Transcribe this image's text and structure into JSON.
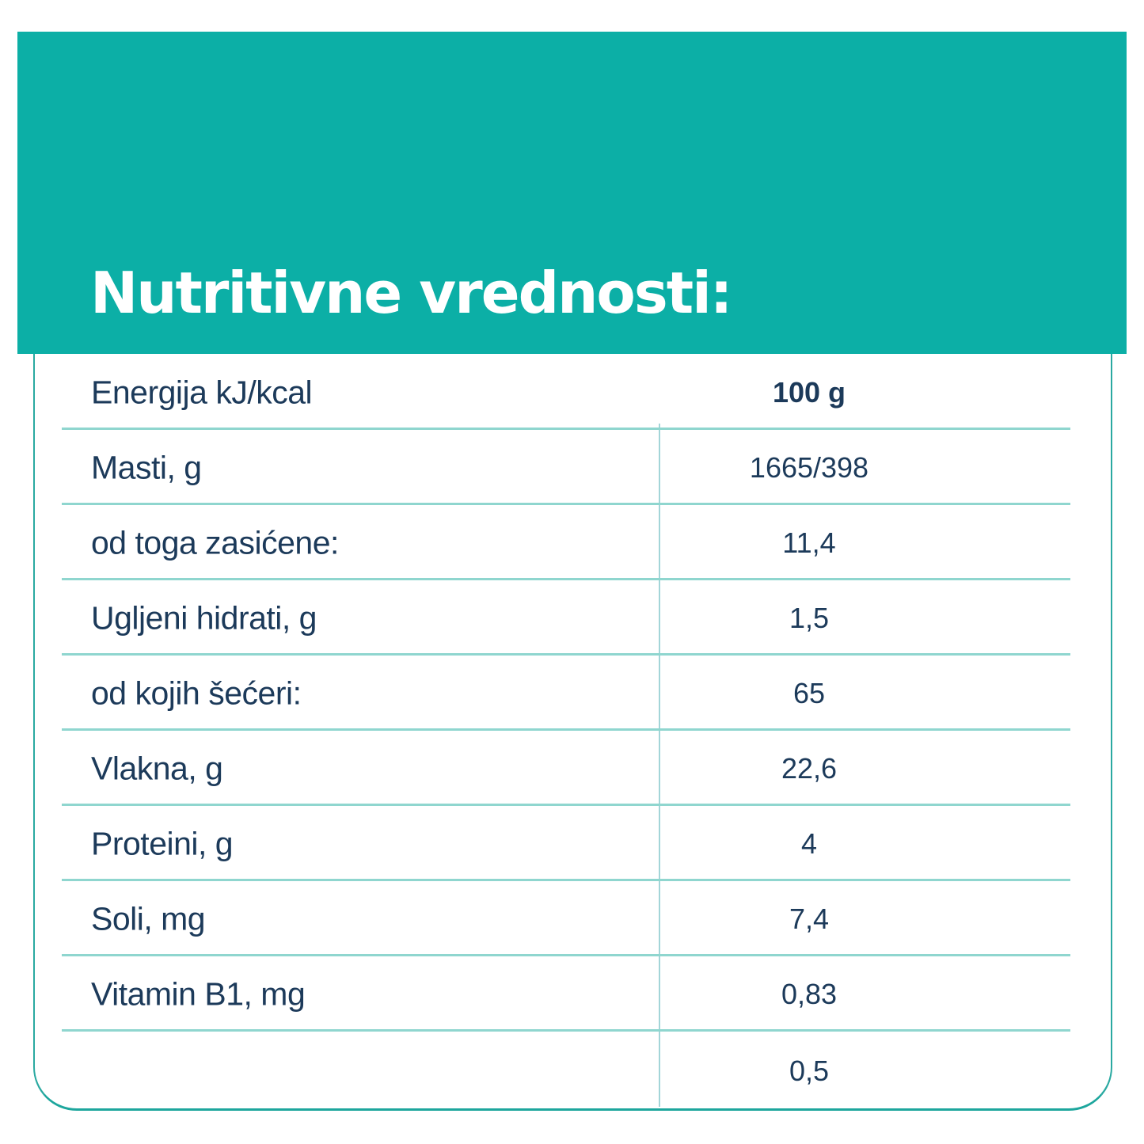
{
  "banner": {
    "title": "Nutritivne vrednosti:"
  },
  "colors": {
    "banner_teal": "#0cafa6",
    "card_border_teal": "#2aa9a1",
    "divider_light_teal": "#8fd6cf",
    "vertical_divider_teal": "#a3d5d8",
    "text_navy": "#1c3a5a",
    "title_white": "#ffffff"
  },
  "table": {
    "rows": [
      {
        "label": "Energija kJ/kcal",
        "value": "100 g"
      },
      {
        "label": "Masti, g",
        "value": "1665/398"
      },
      {
        "label": "od toga zasićene:",
        "value": "11,4"
      },
      {
        "label": "Ugljeni hidrati, g",
        "value": "1,5"
      },
      {
        "label": "od kojih šećeri:",
        "value": "65"
      },
      {
        "label": "Vlakna, g",
        "value": "22,6"
      },
      {
        "label": "Proteini, g",
        "value": "4"
      },
      {
        "label": "Soli, mg",
        "value": "7,4"
      },
      {
        "label": "Vitamin B1, mg",
        "value": "0,83"
      },
      {
        "label": "",
        "value": "0,5"
      }
    ]
  }
}
